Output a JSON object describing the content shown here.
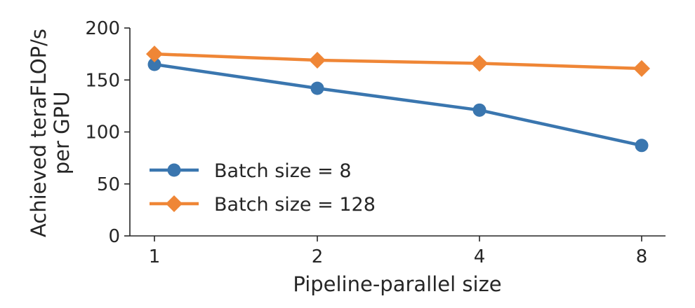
{
  "chart_data": {
    "type": "line",
    "categories": [
      "1",
      "2",
      "4",
      "8"
    ],
    "series": [
      {
        "name": "Batch size = 8",
        "values": [
          165,
          142,
          121,
          87
        ],
        "color": "#3a76af",
        "marker": "circle"
      },
      {
        "name": "Batch size = 128",
        "values": [
          175,
          169,
          166,
          161
        ],
        "color": "#ef8636",
        "marker": "diamond"
      }
    ],
    "title": "",
    "xlabel": "Pipeline-parallel size",
    "ylabel_lines": [
      "Achieved teraFLOP/s",
      "per GPU"
    ],
    "ylim": [
      0,
      200
    ],
    "yticks": [
      0,
      50,
      100,
      150,
      200
    ],
    "grid": false,
    "legend_position": "lower-left"
  }
}
